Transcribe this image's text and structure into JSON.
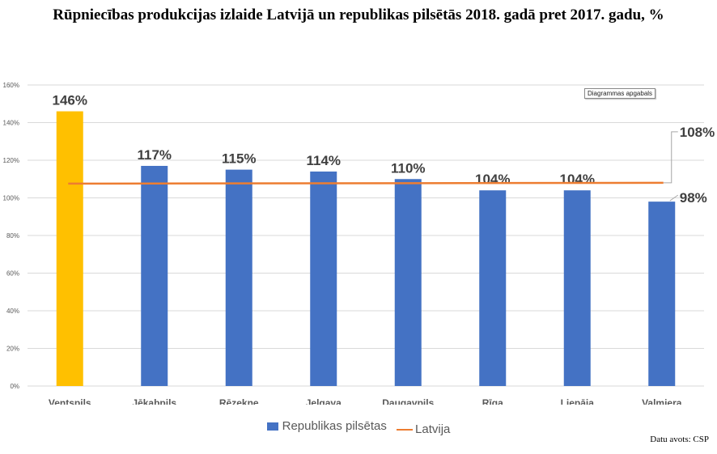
{
  "title": "Rūpniecības produkcijas izlaide Latvijā un republikas pilsētās 2018. gadā pret 2017. gadu, %",
  "tooltip": "Diagrammas apgabals",
  "source": "Datu avots: CSP",
  "legend": {
    "bar_label": "Republikas pilsētas",
    "line_label": "Latvija"
  },
  "colors": {
    "bar": "#4472C4",
    "highlight": "#FFC000",
    "line": "#ED7D31",
    "grid": "#D9D9D9",
    "label": "#404040"
  },
  "chart_data": {
    "type": "bar",
    "categories": [
      "Ventspils",
      "Jēkabpils",
      "Rēzekne",
      "Jelgava",
      "Daugavpils",
      "Rīga",
      "Liepāja",
      "Valmiera"
    ],
    "series": [
      {
        "name": "Republikas pilsētas",
        "values": [
          146,
          117,
          115,
          114,
          110,
          104,
          104,
          98
        ],
        "labels": [
          "146%",
          "117%",
          "115%",
          "114%",
          "110%",
          "104%",
          "104%",
          "98%"
        ],
        "highlight_index": 0
      },
      {
        "name": "Latvija",
        "type": "line",
        "value": 108,
        "label": "108%"
      }
    ],
    "ylim": [
      0,
      160
    ],
    "yticks": [
      "0%",
      "20%",
      "40%",
      "60%",
      "80%",
      "100%",
      "120%",
      "140%",
      "160%"
    ],
    "grid": true,
    "legend_position": "bottom"
  }
}
